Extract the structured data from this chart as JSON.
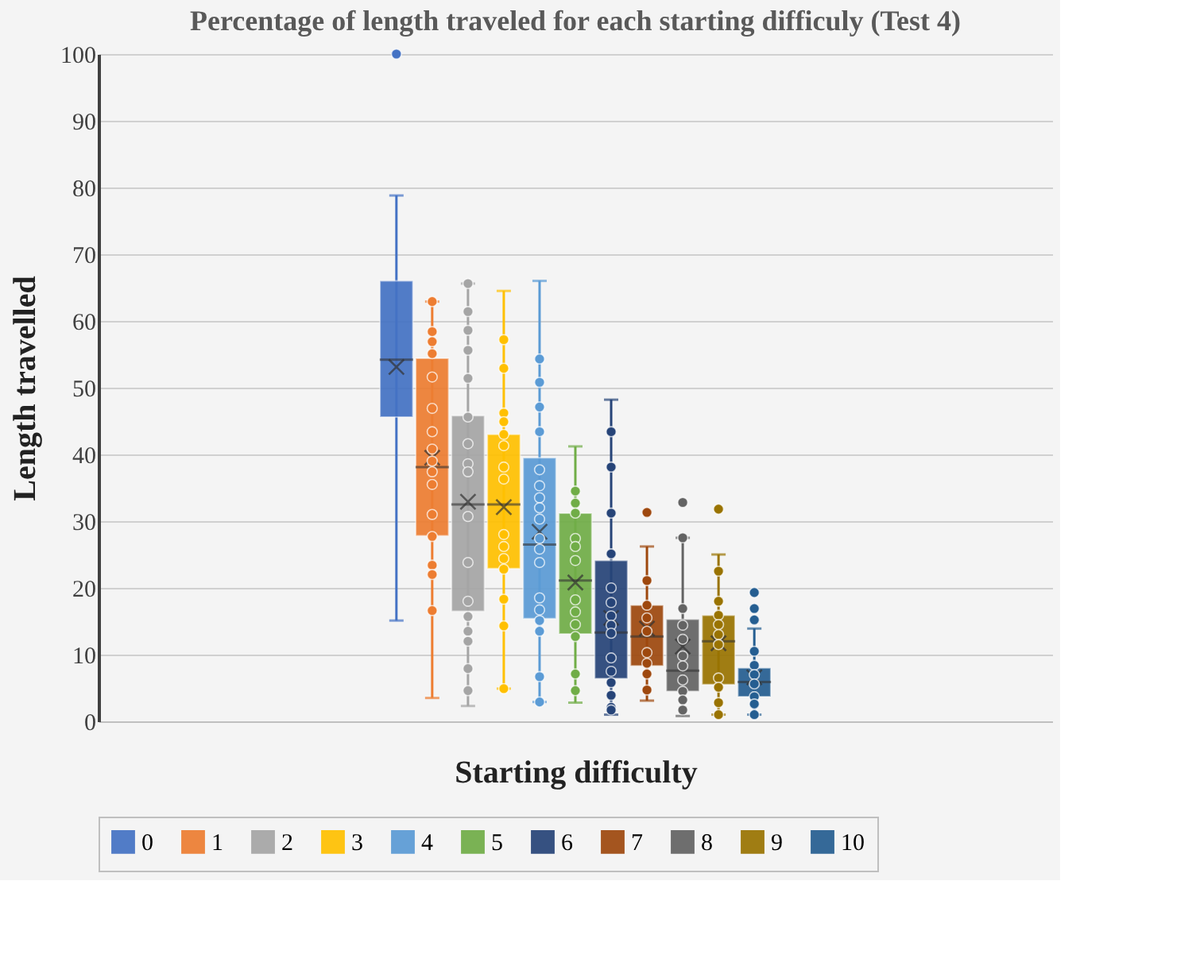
{
  "chart_data": {
    "type": "box",
    "title": "Percentage of length traveled for each starting difficuly (Test 4)",
    "xlabel": "Starting difficulty",
    "ylabel": "Length travelled",
    "categories": [
      null
    ],
    "series": [
      {
        "name": "0",
        "color": "#4472c4",
        "boxes": [
          {
            "low": 15.1,
            "q1": 45.6,
            "median": 54.2,
            "q3": 66.0,
            "high": 78.8,
            "mean": 53.1,
            "outliers": [
              100
            ]
          }
        ]
      },
      {
        "name": "1",
        "color": "#ed7d31",
        "boxes": [
          {
            "low": 3.5,
            "q1": 27.8,
            "median": 38.1,
            "q3": 54.4,
            "high": 62.9,
            "mean": 39.5,
            "outliers": [
              62.9,
              58.4,
              56.9,
              55.1,
              51.6,
              46.9,
              43.4,
              40.8,
              39.0,
              37.4,
              35.5,
              31.0,
              27.7,
              23.4,
              22.0,
              16.6
            ]
          }
        ]
      },
      {
        "name": "2",
        "color": "#a5a5a5",
        "boxes": [
          {
            "low": 2.3,
            "q1": 16.5,
            "median": 32.5,
            "q3": 45.8,
            "high": 65.6,
            "mean": 32.9,
            "outliers": [
              65.6,
              61.4,
              58.6,
              55.6,
              51.4,
              45.6,
              41.6,
              38.6,
              37.4,
              30.7,
              23.8,
              18.0,
              15.7,
              13.5,
              12.0,
              7.9,
              4.6
            ]
          }
        ]
      },
      {
        "name": "3",
        "color": "#ffc000",
        "boxes": [
          {
            "low": 4.9,
            "q1": 22.9,
            "median": 32.5,
            "q3": 43.0,
            "high": 64.5,
            "mean": 32.1,
            "outliers": [
              57.2,
              52.9,
              46.2,
              44.9,
              43.0,
              41.3,
              38.1,
              36.3,
              28.0,
              26.2,
              24.4,
              22.8,
              18.3,
              14.3,
              4.9
            ]
          }
        ]
      },
      {
        "name": "4",
        "color": "#5b9bd5",
        "boxes": [
          {
            "low": 2.9,
            "q1": 15.4,
            "median": 26.5,
            "q3": 39.5,
            "high": 66.0,
            "mean": 28.4,
            "outliers": [
              54.3,
              50.8,
              47.1,
              43.4,
              37.7,
              35.3,
              33.5,
              32.0,
              30.3,
              27.4,
              25.8,
              23.8,
              18.5,
              16.7,
              15.1,
              13.5,
              6.7,
              2.9
            ]
          }
        ]
      },
      {
        "name": "5",
        "color": "#70ad47",
        "boxes": [
          {
            "low": 2.8,
            "q1": 13.1,
            "median": 21.1,
            "q3": 31.2,
            "high": 41.2,
            "mean": 20.8,
            "outliers": [
              34.5,
              32.7,
              31.2,
              27.4,
              26.2,
              24.1,
              18.2,
              16.4,
              14.5,
              12.7,
              7.1,
              4.6
            ]
          }
        ]
      },
      {
        "name": "6",
        "color": "#264478",
        "boxes": [
          {
            "low": 1.0,
            "q1": 6.4,
            "median": 13.3,
            "q3": 24.1,
            "high": 48.2,
            "mean": 15.5,
            "outliers": [
              43.4,
              38.1,
              31.2,
              25.1,
              20.0,
              17.8,
              15.8,
              14.4,
              13.2,
              9.5,
              7.5,
              5.8,
              3.9,
              2.1,
              1.7
            ]
          }
        ]
      },
      {
        "name": "7",
        "color": "#9e480e",
        "boxes": [
          {
            "low": 3.1,
            "q1": 8.3,
            "median": 12.7,
            "q3": 17.4,
            "high": 26.2,
            "mean": 13.9,
            "outliers": [
              31.3,
              21.1,
              17.4,
              15.5,
              13.5,
              10.3,
              8.7,
              7.1,
              4.7
            ]
          }
        ]
      },
      {
        "name": "8",
        "color": "#636363",
        "boxes": [
          {
            "low": 0.8,
            "q1": 4.5,
            "median": 7.6,
            "q3": 15.3,
            "high": 27.5,
            "mean": 11.2,
            "outliers": [
              32.8,
              27.5,
              16.9,
              14.4,
              12.3,
              9.8,
              8.3,
              6.2,
              4.5,
              3.2,
              1.7
            ]
          }
        ]
      },
      {
        "name": "9",
        "color": "#997300",
        "boxes": [
          {
            "low": 1.0,
            "q1": 5.5,
            "median": 12.0,
            "q3": 15.9,
            "high": 25.0,
            "mean": 11.7,
            "outliers": [
              31.8,
              22.5,
              18.0,
              15.9,
              14.5,
              13.0,
              11.5,
              6.5,
              5.1,
              2.8,
              1.0
            ]
          }
        ]
      },
      {
        "name": "10",
        "color": "#255e91",
        "boxes": [
          {
            "low": 1.0,
            "q1": 3.7,
            "median": 5.9,
            "q3": 8.0,
            "high": 13.9,
            "mean": 6.6,
            "outliers": [
              19.3,
              16.9,
              15.2,
              10.5,
              8.4,
              7.0,
              5.6,
              3.7,
              2.6,
              1.0
            ]
          }
        ]
      }
    ],
    "ylim": [
      0,
      100
    ],
    "yticks": [
      0,
      10,
      20,
      30,
      40,
      50,
      60,
      70,
      80,
      90,
      100
    ],
    "grid": "y",
    "legend": "bottom"
  }
}
